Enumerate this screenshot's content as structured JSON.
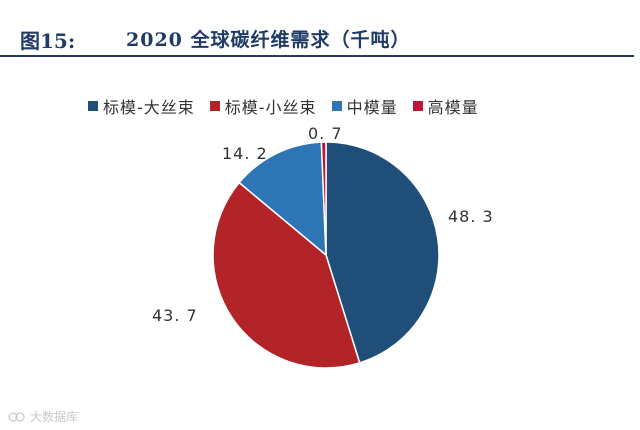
{
  "header": {
    "figure_label": "图15:",
    "title": "2020 全球碳纤维需求（千吨）"
  },
  "watermark": {
    "text": "大数据库"
  },
  "chart_data": {
    "type": "pie",
    "title": "2020 全球碳纤维需求（千吨）",
    "unit": "千吨",
    "legend_position": "top",
    "categories": [
      "标模-大丝束",
      "标模-小丝束",
      "中模量",
      "高模量"
    ],
    "values": [
      48.3,
      43.7,
      14.2,
      0.7
    ],
    "labels": [
      "48. 3",
      "43. 7",
      "14. 2",
      "0. 7"
    ],
    "colors": [
      "#1f4e79",
      "#b22428",
      "#2e75b6",
      "#c0143c"
    ],
    "start_angle_deg": 0,
    "direction": "clockwise"
  }
}
